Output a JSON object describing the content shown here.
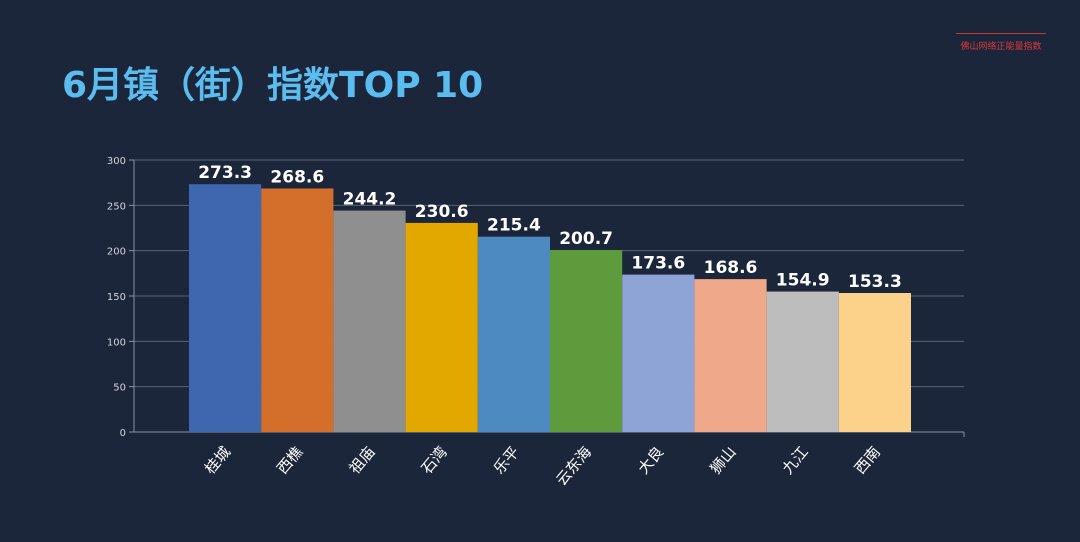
{
  "title": "6月镇（街）指数TOP 10",
  "brand": "佛山网络正能量指数",
  "chart_data": {
    "type": "bar",
    "title": "6月镇（街）指数TOP 10",
    "categories": [
      "桂城",
      "西樵",
      "祖庙",
      "石湾",
      "乐平",
      "云东海",
      "大良",
      "狮山",
      "九江",
      "西南"
    ],
    "values": [
      273.3,
      268.6,
      244.2,
      230.6,
      215.4,
      200.7,
      173.6,
      168.6,
      154.9,
      153.3
    ],
    "labels": [
      "273.3",
      "268.6",
      "244.2",
      "230.6",
      "215.4",
      "200.7",
      "173.6",
      "168.6",
      "154.9",
      "153.3"
    ],
    "colors": [
      "#3f67b0",
      "#d46f2b",
      "#8f8f8f",
      "#e2a800",
      "#4d8ac2",
      "#5e9b3d",
      "#8ea3d6",
      "#f0a88a",
      "#bdbdbd",
      "#fcd28a"
    ],
    "ylim": [
      0,
      300
    ],
    "yticks": [
      "0",
      "50",
      "100",
      "150",
      "200",
      "250",
      "300"
    ],
    "grid": true
  }
}
